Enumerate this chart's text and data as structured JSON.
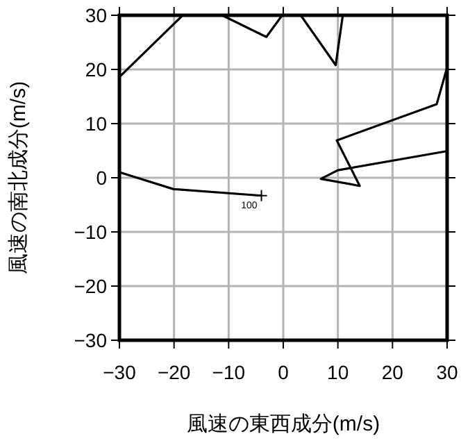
{
  "chart_data": {
    "type": "line",
    "xlabel": "風速の東西成分(m/s)",
    "ylabel": "風速の南北成分(m/s)",
    "xlim": [
      -30,
      30
    ],
    "ylim": [
      -30,
      30
    ],
    "xticks": [
      -30,
      -20,
      -10,
      0,
      10,
      20,
      30
    ],
    "yticks": [
      -30,
      -20,
      -10,
      0,
      10,
      20,
      30
    ],
    "grid": true,
    "series": [
      {
        "color": "#000000",
        "x": [
          -4,
          -20.1,
          -29.9,
          null,
          -29.9,
          -18.4,
          null,
          -11.2,
          -3.1,
          -0.2,
          null,
          3.2,
          9.6,
          10.9,
          null,
          29.9,
          28.1,
          9.8,
          14,
          6.9,
          10,
          29.9
        ],
        "values": [
          -3.3,
          -2.1,
          1.0,
          null,
          18.7,
          30,
          null,
          30,
          26,
          30,
          null,
          30,
          20.8,
          30,
          null,
          20,
          13.6,
          6.9,
          -1.5,
          -0.2,
          1.4,
          4.9
        ]
      }
    ],
    "annotations": [
      {
        "text": "100",
        "x": -4,
        "y": -3.3
      }
    ]
  }
}
